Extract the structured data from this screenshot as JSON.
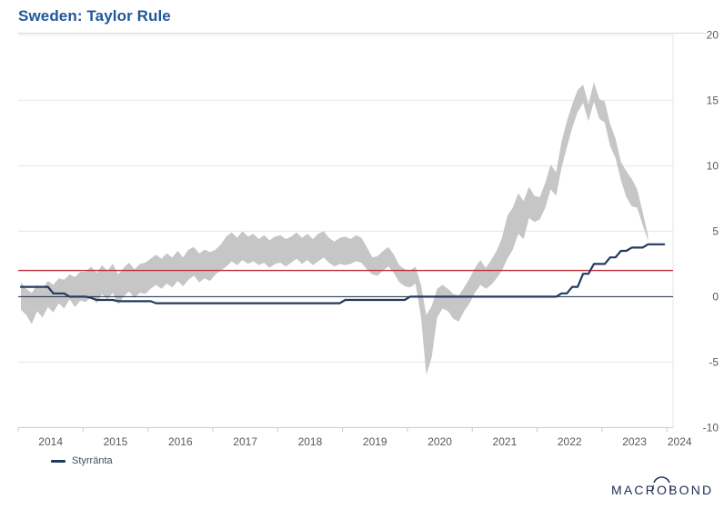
{
  "header": {
    "title": "Sweden: Taylor Rule"
  },
  "legend": {
    "items": [
      {
        "label": "Styrränta",
        "color": "#223a5e"
      }
    ]
  },
  "branding": {
    "logo_text": "MACROBOND",
    "logo_color": "#1d2e52"
  },
  "colors": {
    "title": "#21579b",
    "band": "#c6c6c6",
    "policy_line": "#223a5e",
    "zero_line": "#17243e",
    "reference_red": "#bf2f3e",
    "gridline": "#e6e6e6",
    "axis_line": "#c9c9c9",
    "tick_label": "#595959"
  },
  "chart_data": {
    "type": "area",
    "title": "Sweden: Taylor Rule",
    "xlabel": "",
    "ylabel": "",
    "x_ticks": [
      "2014",
      "2015",
      "2016",
      "2017",
      "2018",
      "2019",
      "2020",
      "2021",
      "2022",
      "2023",
      "2024"
    ],
    "y_ticks": [
      -10,
      -5,
      0,
      5,
      10,
      15,
      20
    ],
    "xlim_years": [
      2014,
      2024.1
    ],
    "ylim": [
      -10,
      20
    ],
    "grid": true,
    "legend_position": "bottom-left",
    "frequency": "monthly",
    "start_month": "2014-01",
    "reference_lines": [
      {
        "value": 2,
        "color": "#bf2f3e"
      },
      {
        "value": 0,
        "color": "#17243e"
      }
    ],
    "band": {
      "role": "taylor-rule-range",
      "fill": "#c6c6c6",
      "low": [
        -1.0,
        -1.4,
        -2.1,
        -1.1,
        -1.6,
        -0.8,
        -1.2,
        -0.5,
        -0.9,
        -0.2,
        -0.8,
        -0.3,
        -0.4,
        0.0,
        -0.5,
        0.2,
        -0.2,
        0.3,
        -0.6,
        0.0,
        0.4,
        -0.1,
        0.3,
        0.2,
        0.6,
        0.9,
        0.6,
        1.0,
        0.7,
        1.2,
        0.8,
        1.3,
        1.6,
        1.1,
        1.4,
        1.2,
        1.7,
        2.0,
        2.3,
        2.7,
        2.4,
        2.8,
        2.5,
        2.7,
        2.4,
        2.6,
        2.2,
        2.5,
        2.6,
        2.3,
        2.6,
        2.9,
        2.5,
        2.8,
        2.4,
        2.7,
        3.0,
        2.6,
        2.3,
        2.5,
        2.4,
        2.5,
        2.7,
        2.6,
        2.1,
        1.7,
        1.6,
        2.0,
        2.3,
        1.8,
        1.1,
        0.8,
        0.7,
        1.0,
        -1.5,
        -6.0,
        -4.6,
        -1.6,
        -0.9,
        -1.1,
        -1.7,
        -1.9,
        -1.1,
        -0.5,
        0.3,
        0.9,
        0.6,
        0.9,
        1.4,
        2.0,
        2.9,
        3.6,
        4.8,
        4.4,
        6.0,
        5.7,
        5.9,
        6.8,
        8.2,
        7.7,
        9.8,
        11.4,
        12.9,
        14.1,
        14.8,
        13.4,
        14.9,
        13.6,
        13.3,
        11.5,
        10.6,
        8.9,
        7.6,
        6.9,
        6.8,
        5.5,
        4.3
      ],
      "high": [
        1.1,
        0.6,
        0.3,
        0.9,
        0.6,
        1.2,
        0.9,
        1.4,
        1.3,
        1.7,
        1.5,
        1.9,
        1.9,
        2.3,
        1.8,
        2.4,
        2.0,
        2.5,
        1.7,
        2.2,
        2.6,
        2.1,
        2.5,
        2.6,
        2.9,
        3.2,
        2.9,
        3.3,
        3.0,
        3.5,
        3.0,
        3.6,
        3.8,
        3.3,
        3.6,
        3.4,
        3.6,
        4.0,
        4.6,
        4.9,
        4.5,
        5.0,
        4.6,
        4.8,
        4.4,
        4.7,
        4.3,
        4.6,
        4.7,
        4.4,
        4.6,
        4.9,
        4.5,
        4.8,
        4.4,
        4.8,
        5.0,
        4.5,
        4.2,
        4.5,
        4.6,
        4.4,
        4.7,
        4.5,
        3.8,
        3.0,
        3.1,
        3.5,
        3.8,
        3.2,
        2.4,
        2.1,
        2.0,
        2.3,
        0.9,
        -1.4,
        -0.7,
        0.6,
        0.9,
        0.6,
        0.2,
        0.1,
        0.7,
        1.4,
        2.2,
        2.8,
        2.2,
        2.8,
        3.5,
        4.5,
        6.2,
        6.8,
        7.9,
        7.3,
        8.4,
        7.7,
        7.6,
        8.7,
        10.1,
        9.5,
        11.8,
        13.4,
        14.7,
        15.8,
        16.2,
        14.7,
        16.4,
        15.1,
        14.9,
        13.2,
        12.1,
        10.3,
        9.6,
        9.0,
        8.2,
        6.5,
        4.7
      ]
    },
    "series": [
      {
        "name": "Styrränta",
        "color": "#223a5e",
        "values": [
          0.75,
          0.75,
          0.75,
          0.75,
          0.75,
          0.75,
          0.25,
          0.25,
          0.25,
          0,
          0,
          0,
          0,
          -0.1,
          -0.25,
          -0.25,
          -0.25,
          -0.25,
          -0.35,
          -0.35,
          -0.35,
          -0.35,
          -0.35,
          -0.35,
          -0.35,
          -0.5,
          -0.5,
          -0.5,
          -0.5,
          -0.5,
          -0.5,
          -0.5,
          -0.5,
          -0.5,
          -0.5,
          -0.5,
          -0.5,
          -0.5,
          -0.5,
          -0.5,
          -0.5,
          -0.5,
          -0.5,
          -0.5,
          -0.5,
          -0.5,
          -0.5,
          -0.5,
          -0.5,
          -0.5,
          -0.5,
          -0.5,
          -0.5,
          -0.5,
          -0.5,
          -0.5,
          -0.5,
          -0.5,
          -0.5,
          -0.5,
          -0.25,
          -0.25,
          -0.25,
          -0.25,
          -0.25,
          -0.25,
          -0.25,
          -0.25,
          -0.25,
          -0.25,
          -0.25,
          -0.25,
          0,
          0,
          0,
          0,
          0,
          0,
          0,
          0,
          0,
          0,
          0,
          0,
          0,
          0,
          0,
          0,
          0,
          0,
          0,
          0,
          0,
          0,
          0,
          0,
          0,
          0,
          0,
          0,
          0.25,
          0.25,
          0.75,
          0.75,
          1.75,
          1.75,
          2.5,
          2.5,
          2.5,
          3,
          3,
          3.5,
          3.5,
          3.75,
          3.75,
          3.75,
          4,
          4,
          4,
          4
        ]
      }
    ]
  }
}
